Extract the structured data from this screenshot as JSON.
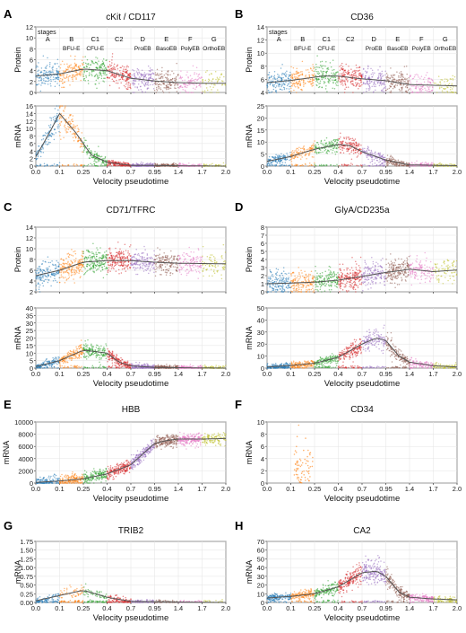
{
  "figure": {
    "x_axis_label": "Velocity pseudotime",
    "x_tick_labels": [
      "0.0",
      "0.1",
      "0.25",
      "0.4",
      "0.7",
      "0.95",
      "1.4",
      "1.7",
      "2.0"
    ],
    "stage_colors": {
      "A": "#1f77b4",
      "B": "#ff7f0e",
      "C1": "#2ca02c",
      "C2": "#d62728",
      "D": "#9467bd",
      "E": "#8c564b",
      "F": "#e377c2",
      "G": "#bcbd22"
    }
  },
  "chart_data": [
    {
      "panel": "A",
      "title": "cKit / CD117",
      "type": "scatter",
      "x_tick_labels": [
        "0.0",
        "0.1",
        "0.25",
        "0.4",
        "0.7",
        "0.95",
        "1.4",
        "1.7",
        "2.0"
      ],
      "xlabel": "Velocity pseudotime",
      "stages": {
        "label": "stages",
        "letters": [
          "A",
          "B",
          "C1",
          "C2",
          "D",
          "E",
          "F",
          "G"
        ],
        "names": [
          "",
          "BFU-E",
          "CFU-E",
          "",
          "ProEB",
          "BasoEB",
          "PolyEB",
          "OrthoEB"
        ]
      },
      "protein": {
        "ylabel": "Protein",
        "ylim": [
          0,
          12
        ],
        "y_ticks": [
          "0",
          "2",
          "4",
          "6",
          "8",
          "10",
          "12"
        ],
        "trend": [
          [
            0.0,
            3.0
          ],
          [
            0.1,
            3.4
          ],
          [
            0.25,
            4.3
          ],
          [
            0.4,
            4.0
          ],
          [
            0.7,
            2.6
          ],
          [
            0.95,
            2.1
          ],
          [
            1.4,
            1.8
          ],
          [
            1.7,
            1.7
          ],
          [
            2.0,
            1.7
          ]
        ]
      },
      "mrna": {
        "ylabel": "mRNA",
        "ylim": [
          0,
          16
        ],
        "y_ticks": [
          "0",
          "2",
          "4",
          "6",
          "8",
          "10",
          "12",
          "14",
          "16"
        ],
        "trend": [
          [
            0.0,
            2.5
          ],
          [
            0.05,
            8.0
          ],
          [
            0.1,
            14.0
          ],
          [
            0.2,
            9.0
          ],
          [
            0.3,
            3.0
          ],
          [
            0.4,
            1.0
          ],
          [
            0.7,
            0.2
          ],
          [
            2.0,
            0.0
          ]
        ]
      }
    },
    {
      "panel": "B",
      "title": "CD36",
      "type": "scatter",
      "x_tick_labels": [
        "0.0",
        "0.1",
        "0.25",
        "0.4",
        "0.7",
        "0.95",
        "1.4",
        "1.7",
        "2.0"
      ],
      "xlabel": "Velocity pseudotime",
      "stages": {
        "label": "stages",
        "letters": [
          "A",
          "B",
          "C1",
          "C2",
          "D",
          "E",
          "F",
          "G"
        ],
        "names": [
          "",
          "BFU-E",
          "CFU-E",
          "",
          "ProEB",
          "BasoEB",
          "PolyEB",
          "OrthoEB"
        ]
      },
      "protein": {
        "ylabel": "Protein",
        "ylim": [
          4,
          14
        ],
        "y_ticks": [
          "4",
          "6",
          "8",
          "10",
          "12",
          "14"
        ],
        "trend": [
          [
            0.0,
            5.5
          ],
          [
            0.15,
            6.0
          ],
          [
            0.3,
            6.5
          ],
          [
            0.4,
            6.5
          ],
          [
            0.6,
            6.2
          ],
          [
            0.95,
            5.8
          ],
          [
            1.4,
            5.2
          ],
          [
            2.0,
            5.0
          ]
        ]
      },
      "mrna": {
        "ylabel": "mRNA",
        "ylim": [
          0,
          25
        ],
        "y_ticks": [
          "0",
          "5",
          "10",
          "15",
          "20",
          "25"
        ],
        "trend": [
          [
            0.0,
            2.0
          ],
          [
            0.1,
            4.0
          ],
          [
            0.25,
            7.0
          ],
          [
            0.4,
            9.0
          ],
          [
            0.55,
            8.5
          ],
          [
            0.7,
            6.0
          ],
          [
            0.95,
            2.5
          ],
          [
            1.4,
            0.5
          ],
          [
            2.0,
            0.2
          ]
        ]
      }
    },
    {
      "panel": "C",
      "title": "CD71/TFRC",
      "type": "scatter",
      "x_tick_labels": [
        "0.0",
        "0.1",
        "0.25",
        "0.4",
        "0.7",
        "0.95",
        "1.4",
        "1.7",
        "2.0"
      ],
      "xlabel": "Velocity pseudotime",
      "protein": {
        "ylabel": "Protein",
        "ylim": [
          2,
          14
        ],
        "y_ticks": [
          "2",
          "4",
          "6",
          "8",
          "10",
          "12",
          "14"
        ],
        "trend": [
          [
            0.0,
            5.0
          ],
          [
            0.1,
            6.0
          ],
          [
            0.25,
            7.5
          ],
          [
            0.4,
            7.8
          ],
          [
            0.7,
            7.8
          ],
          [
            0.95,
            7.5
          ],
          [
            1.4,
            7.3
          ],
          [
            2.0,
            7.2
          ]
        ]
      },
      "mrna": {
        "ylabel": "mRNA",
        "ylim": [
          0,
          40
        ],
        "y_ticks": [
          "0",
          "5",
          "10",
          "15",
          "20",
          "25",
          "30",
          "35",
          "40"
        ],
        "trend": [
          [
            0.0,
            1.0
          ],
          [
            0.1,
            5.0
          ],
          [
            0.25,
            12.0
          ],
          [
            0.4,
            10.0
          ],
          [
            0.55,
            4.0
          ],
          [
            0.7,
            1.5
          ],
          [
            0.95,
            0.5
          ],
          [
            2.0,
            0.0
          ]
        ]
      }
    },
    {
      "panel": "D",
      "title": "GlyA/CD235a",
      "type": "scatter",
      "x_tick_labels": [
        "0.0",
        "0.1",
        "0.25",
        "0.4",
        "0.7",
        "0.95",
        "1.4",
        "1.7",
        "2.0"
      ],
      "xlabel": "Velocity pseudotime",
      "protein": {
        "ylabel": "Protein",
        "ylim": [
          0,
          8
        ],
        "y_ticks": [
          "0",
          "1",
          "2",
          "3",
          "4",
          "5",
          "6",
          "7",
          "8"
        ],
        "trend": [
          [
            0.0,
            1.0
          ],
          [
            0.25,
            1.2
          ],
          [
            0.5,
            1.6
          ],
          [
            0.7,
            1.9
          ],
          [
            0.95,
            2.4
          ],
          [
            1.2,
            2.6
          ],
          [
            1.4,
            2.8
          ],
          [
            1.7,
            2.5
          ],
          [
            2.0,
            2.7
          ]
        ]
      },
      "mrna": {
        "ylabel": "mRNA",
        "ylim": [
          0,
          50
        ],
        "y_ticks": [
          "0",
          "10",
          "20",
          "30",
          "40",
          "50"
        ],
        "trend": [
          [
            0.0,
            1.0
          ],
          [
            0.25,
            4.0
          ],
          [
            0.4,
            9.0
          ],
          [
            0.7,
            20.0
          ],
          [
            0.85,
            25.0
          ],
          [
            0.95,
            23.0
          ],
          [
            1.2,
            10.0
          ],
          [
            1.4,
            5.0
          ],
          [
            1.7,
            2.0
          ],
          [
            2.0,
            1.0
          ]
        ]
      }
    },
    {
      "panel": "E",
      "title": "HBB",
      "type": "scatter",
      "x_tick_labels": [
        "0.0",
        "0.1",
        "0.25",
        "0.4",
        "0.7",
        "0.95",
        "1.4",
        "1.7",
        "2.0"
      ],
      "xlabel": "Velocity pseudotime",
      "mrna": {
        "ylabel": "mRNA",
        "ylim": [
          0,
          10000
        ],
        "y_ticks": [
          "0",
          "2000",
          "4000",
          "6000",
          "8000",
          "10000"
        ],
        "trend": [
          [
            0.0,
            100
          ],
          [
            0.25,
            700
          ],
          [
            0.4,
            1500
          ],
          [
            0.7,
            3000
          ],
          [
            0.95,
            6500
          ],
          [
            1.2,
            7000
          ],
          [
            1.4,
            7200
          ],
          [
            1.7,
            7200
          ],
          [
            2.0,
            7300
          ]
        ]
      }
    },
    {
      "panel": "F",
      "title": "CD34",
      "type": "scatter",
      "x_tick_labels": [
        "0.0",
        "0.1",
        "0.25",
        "0.4",
        "0.7",
        "0.95",
        "1.4",
        "1.7",
        "2.0"
      ],
      "xlabel": "Velocity pseudotime",
      "mrna": {
        "ylabel": "mRNA",
        "ylim": [
          0,
          10
        ],
        "y_ticks": [
          "0",
          "2",
          "4",
          "6",
          "8",
          "10"
        ],
        "trend": []
      }
    },
    {
      "panel": "G",
      "title": "TRIB2",
      "type": "scatter",
      "x_tick_labels": [
        "0.0",
        "0.1",
        "0.25",
        "0.4",
        "0.7",
        "0.95",
        "1.4",
        "1.7",
        "2.0"
      ],
      "xlabel": "Velocity pseudotime",
      "mrna": {
        "ylabel": "mRNA",
        "ylim": [
          0,
          1.75
        ],
        "y_ticks": [
          "0.00",
          "0.25",
          "0.50",
          "0.75",
          "1.00",
          "1.25",
          "1.50",
          "1.75"
        ],
        "trend": [
          [
            0.0,
            0.05
          ],
          [
            0.1,
            0.2
          ],
          [
            0.25,
            0.35
          ],
          [
            0.4,
            0.15
          ],
          [
            0.7,
            0.03
          ],
          [
            2.0,
            0.0
          ]
        ]
      }
    },
    {
      "panel": "H",
      "title": "CA2",
      "type": "scatter",
      "x_tick_labels": [
        "0.0",
        "0.1",
        "0.25",
        "0.4",
        "0.7",
        "0.95",
        "1.4",
        "1.7",
        "2.0"
      ],
      "xlabel": "Velocity pseudotime",
      "mrna": {
        "ylabel": "mRNA",
        "ylim": [
          0,
          70
        ],
        "y_ticks": [
          "0",
          "10",
          "20",
          "30",
          "40",
          "50",
          "60",
          "70"
        ],
        "trend": [
          [
            0.0,
            5
          ],
          [
            0.25,
            10
          ],
          [
            0.4,
            18
          ],
          [
            0.7,
            34
          ],
          [
            0.85,
            36
          ],
          [
            0.95,
            30
          ],
          [
            1.2,
            12
          ],
          [
            1.4,
            6
          ],
          [
            1.7,
            4
          ],
          [
            2.0,
            3
          ]
        ]
      }
    }
  ]
}
